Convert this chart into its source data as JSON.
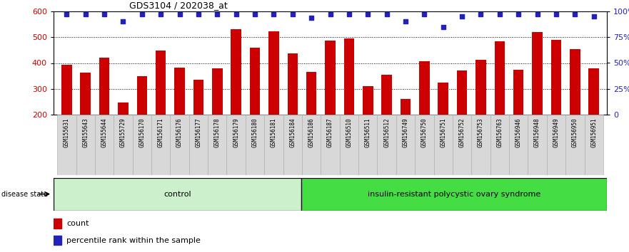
{
  "title": "GDS3104 / 202038_at",
  "samples": [
    "GSM155631",
    "GSM155643",
    "GSM155644",
    "GSM155729",
    "GSM156170",
    "GSM156171",
    "GSM156176",
    "GSM156177",
    "GSM156178",
    "GSM156179",
    "GSM156180",
    "GSM156181",
    "GSM156184",
    "GSM156186",
    "GSM156187",
    "GSM156510",
    "GSM156511",
    "GSM156512",
    "GSM156749",
    "GSM156750",
    "GSM156751",
    "GSM156752",
    "GSM156753",
    "GSM156763",
    "GSM156946",
    "GSM156948",
    "GSM156949",
    "GSM156950",
    "GSM156951"
  ],
  "counts": [
    393,
    362,
    422,
    248,
    350,
    447,
    383,
    335,
    380,
    530,
    460,
    522,
    438,
    365,
    488,
    496,
    310,
    355,
    260,
    408,
    325,
    372,
    413,
    485,
    375,
    520,
    490,
    455,
    380
  ],
  "percentile_ranks": [
    97,
    97,
    97,
    90,
    97,
    97,
    97,
    97,
    97,
    97,
    97,
    97,
    97,
    94,
    97,
    97,
    97,
    97,
    90,
    97,
    85,
    95,
    97,
    97,
    97,
    97,
    97,
    97,
    95
  ],
  "ctrl_count": 13,
  "group_labels": [
    "control",
    "insulin-resistant polycystic ovary syndrome"
  ],
  "ctrl_color": "#ccf0cc",
  "pcos_color": "#44dd44",
  "bar_color": "#CC0000",
  "dot_color": "#2222BB",
  "ylim_left": [
    200,
    600
  ],
  "ylim_right": [
    0,
    100
  ],
  "yticks_left": [
    200,
    300,
    400,
    500,
    600
  ],
  "yticks_right": [
    0,
    25,
    50,
    75,
    100
  ],
  "xlabel_bg": "#d8d8d8",
  "legend_items": [
    "count",
    "percentile rank within the sample"
  ],
  "legend_colors": [
    "#CC0000",
    "#2222BB"
  ]
}
